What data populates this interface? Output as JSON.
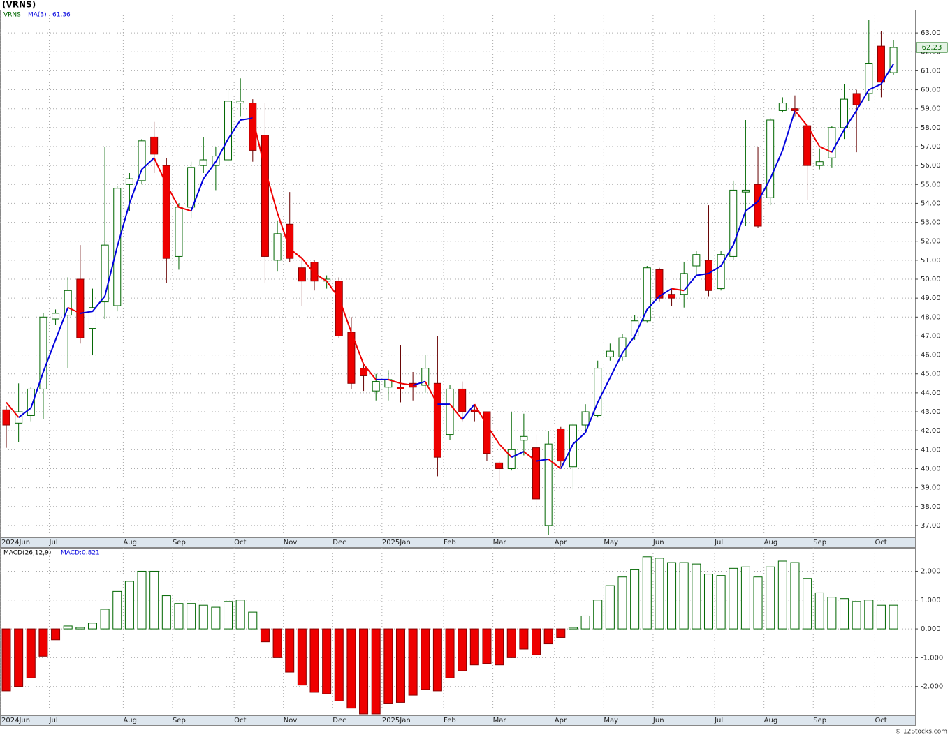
{
  "chart_data": [
    {
      "type": "candlestick",
      "title": "(VRNS)",
      "name": "VRNS",
      "categories": [
        "2024Jun",
        null,
        null,
        null,
        "Jul",
        null,
        null,
        null,
        null,
        null,
        "Aug",
        null,
        null,
        null,
        "Sep",
        null,
        null,
        null,
        null,
        "Oct",
        null,
        null,
        null,
        "Nov",
        null,
        null,
        null,
        "Dec",
        null,
        null,
        null,
        "2025Jan",
        null,
        null,
        null,
        null,
        "Feb",
        null,
        null,
        null,
        "Mar",
        null,
        null,
        null,
        null,
        "Apr",
        null,
        null,
        null,
        "May",
        null,
        null,
        null,
        "Jun",
        null,
        null,
        null,
        null,
        "Jul",
        null,
        null,
        null,
        "Aug",
        null,
        null,
        null,
        "Sep",
        null,
        null,
        null,
        null,
        "Oct",
        null
      ],
      "open": [
        43.1,
        42.4,
        42.8,
        44.2,
        47.9,
        48.1,
        50.0,
        47.4,
        48.8,
        48.6,
        55.0,
        55.2,
        57.5,
        56.0,
        51.2,
        53.8,
        56.0,
        56.0,
        56.3,
        59.3,
        59.3,
        57.6,
        51.0,
        52.9,
        50.6,
        50.9,
        49.9,
        49.9,
        47.2,
        45.3,
        44.1,
        44.3,
        44.3,
        44.5,
        44.4,
        44.5,
        41.8,
        44.2,
        43.1,
        43.0,
        40.3,
        40.0,
        41.5,
        41.1,
        37.0,
        42.1,
        40.1,
        42.3,
        42.8,
        45.9,
        45.9,
        47.0,
        47.8,
        50.5,
        49.2,
        49.2,
        50.7,
        51.0,
        49.5,
        51.2,
        54.6,
        55.0,
        54.3,
        58.9,
        59.0,
        58.1,
        56.0,
        56.4,
        58.0,
        59.8,
        59.8,
        62.3,
        60.9
      ],
      "high": [
        43.3,
        44.5,
        44.3,
        48.2,
        48.4,
        50.1,
        51.8,
        49.5,
        57.0,
        54.9,
        55.6,
        57.4,
        58.3,
        56.4,
        54.0,
        56.2,
        57.5,
        57.0,
        60.2,
        60.6,
        59.5,
        59.3,
        53.1,
        54.6,
        51.2,
        51.0,
        50.2,
        50.1,
        48.0,
        45.5,
        45.0,
        45.2,
        46.5,
        45.1,
        46.0,
        47.0,
        44.4,
        44.6,
        43.4,
        43.0,
        40.4,
        43.0,
        42.9,
        41.8,
        42.0,
        42.2,
        42.4,
        43.4,
        45.7,
        46.6,
        47.1,
        48.1,
        50.7,
        50.6,
        49.5,
        50.9,
        51.5,
        53.9,
        51.5,
        55.2,
        58.4,
        57.0,
        58.5,
        59.6,
        59.7,
        58.2,
        56.9,
        58.1,
        60.3,
        60.0,
        63.7,
        63.1,
        62.6
      ],
      "low": [
        41.1,
        41.4,
        42.5,
        42.6,
        47.6,
        45.3,
        46.6,
        46.0,
        47.9,
        48.3,
        53.6,
        55.0,
        55.6,
        49.8,
        50.5,
        53.2,
        55.6,
        54.7,
        56.2,
        58.6,
        56.2,
        49.8,
        50.4,
        50.9,
        48.6,
        49.4,
        49.5,
        46.9,
        44.2,
        44.1,
        43.6,
        43.6,
        43.5,
        43.6,
        44.0,
        39.6,
        41.5,
        42.5,
        42.5,
        40.4,
        39.1,
        39.9,
        40.7,
        37.8,
        36.5,
        40.1,
        38.9,
        41.9,
        42.7,
        45.7,
        45.7,
        46.8,
        47.7,
        48.8,
        48.6,
        48.5,
        50.2,
        49.1,
        49.4,
        51.0,
        52.8,
        52.7,
        53.9,
        58.8,
        58.6,
        54.2,
        55.8,
        55.9,
        57.4,
        56.7,
        59.4,
        59.6,
        60.8
      ],
      "close": [
        42.3,
        43.0,
        44.2,
        48.0,
        48.2,
        49.4,
        46.9,
        48.5,
        51.8,
        54.8,
        55.3,
        57.3,
        56.6,
        51.1,
        53.8,
        55.9,
        56.3,
        56.5,
        59.4,
        59.4,
        56.8,
        51.2,
        52.4,
        51.1,
        49.9,
        49.9,
        50.0,
        47.0,
        44.5,
        44.9,
        44.6,
        44.7,
        44.2,
        44.3,
        45.3,
        40.6,
        44.2,
        43.0,
        43.0,
        40.8,
        40.0,
        41.0,
        41.7,
        38.4,
        41.3,
        40.4,
        42.3,
        43.0,
        45.3,
        46.2,
        46.9,
        47.8,
        50.6,
        49.0,
        49.0,
        50.3,
        51.3,
        49.4,
        51.3,
        54.7,
        54.7,
        52.8,
        58.4,
        59.3,
        58.9,
        56.0,
        56.2,
        58.0,
        59.5,
        59.2,
        61.4,
        60.4,
        62.23
      ],
      "ma": {
        "name": "MA(3)",
        "values": [
          43.5,
          42.7,
          43.2,
          45.1,
          46.8,
          48.5,
          48.2,
          48.3,
          49.1,
          51.7,
          54.0,
          55.8,
          56.4,
          55.0,
          53.8,
          53.6,
          55.3,
          56.2,
          57.4,
          58.4,
          58.5,
          55.8,
          53.5,
          51.6,
          51.1,
          50.3,
          49.9,
          49.0,
          47.2,
          45.5,
          44.7,
          44.7,
          44.5,
          44.4,
          44.6,
          43.4,
          43.4,
          42.6,
          43.4,
          42.3,
          41.3,
          40.6,
          40.9,
          40.4,
          40.5,
          40.0,
          41.3,
          41.9,
          43.5,
          44.8,
          46.1,
          47.0,
          48.4,
          49.1,
          49.5,
          49.4,
          50.2,
          50.3,
          50.7,
          51.8,
          53.6,
          54.1,
          55.3,
          56.8,
          58.9,
          58.1,
          57.0,
          56.7,
          57.9,
          58.9,
          60.0,
          60.3,
          61.36
        ]
      },
      "up_color": "#006600",
      "down_color": "#ee0000",
      "ma_up_color": "#0000dd",
      "ma_down_color": "#ee0000",
      "ylim": [
        36.37,
        64.22
      ],
      "yticks": [
        {
          "value": 37,
          "label": "37.00"
        },
        {
          "value": 38,
          "label": "38.00"
        },
        {
          "value": 39,
          "label": "39.00"
        },
        {
          "value": 40,
          "label": "40.00"
        },
        {
          "value": 41,
          "label": "41.00"
        },
        {
          "value": 42,
          "label": "42.00"
        },
        {
          "value": 43,
          "label": "43.00"
        },
        {
          "value": 44,
          "label": "44.00"
        },
        {
          "value": 45,
          "label": "45.00"
        },
        {
          "value": 46,
          "label": "46.00"
        },
        {
          "value": 47,
          "label": "47.00"
        },
        {
          "value": 48,
          "label": "48.00"
        },
        {
          "value": 49,
          "label": "49.00"
        },
        {
          "value": 50,
          "label": "50.00"
        },
        {
          "value": 51,
          "label": "51.00"
        },
        {
          "value": 52,
          "label": "52.00"
        },
        {
          "value": 53,
          "label": "53.00"
        },
        {
          "value": 54,
          "label": "54.00"
        },
        {
          "value": 55,
          "label": "55.00"
        },
        {
          "value": 56,
          "label": "56.00"
        },
        {
          "value": 57,
          "label": "57.00"
        },
        {
          "value": 58,
          "label": "58.00"
        },
        {
          "value": 59,
          "label": "59.00"
        },
        {
          "value": 60,
          "label": "60.00"
        },
        {
          "value": 61,
          "label": "61.00"
        },
        {
          "value": 62,
          "label": "62.00"
        },
        {
          "value": 63,
          "label": "63.00"
        }
      ],
      "grid": true
    },
    {
      "type": "bar",
      "name": "MACD(26,12,9)",
      "value_prefix": "MACD:",
      "values": [
        -2.15,
        -2.0,
        -1.7,
        -0.95,
        -0.38,
        0.1,
        0.05,
        0.2,
        0.68,
        1.3,
        1.65,
        2.0,
        2.0,
        1.15,
        0.88,
        0.88,
        0.82,
        0.75,
        0.95,
        1.0,
        0.58,
        -0.45,
        -1.0,
        -1.5,
        -1.95,
        -2.2,
        -2.25,
        -2.5,
        -2.75,
        -2.95,
        -2.95,
        -2.6,
        -2.55,
        -2.3,
        -2.1,
        -2.15,
        -1.7,
        -1.45,
        -1.25,
        -1.2,
        -1.25,
        -1.0,
        -0.7,
        -0.9,
        -0.52,
        -0.3,
        0.05,
        0.45,
        1.0,
        1.5,
        1.8,
        2.05,
        2.5,
        2.45,
        2.3,
        2.3,
        2.25,
        1.9,
        1.85,
        2.1,
        2.15,
        1.8,
        2.15,
        2.35,
        2.3,
        1.75,
        1.25,
        1.1,
        1.05,
        0.95,
        1.0,
        0.82,
        0.821
      ],
      "pos_color": "#006600",
      "neg_color": "#ee0000",
      "ylim": [
        -3.0,
        2.81
      ],
      "yticks": [
        {
          "value": 2,
          "label": "2.000"
        },
        {
          "value": 1,
          "label": "1.000"
        },
        {
          "value": 0,
          "label": "0.000"
        },
        {
          "value": -1,
          "label": "-1.000"
        },
        {
          "value": -2,
          "label": "-2.000"
        }
      ],
      "grid": true
    }
  ],
  "footer": "© 12Stocks.com"
}
